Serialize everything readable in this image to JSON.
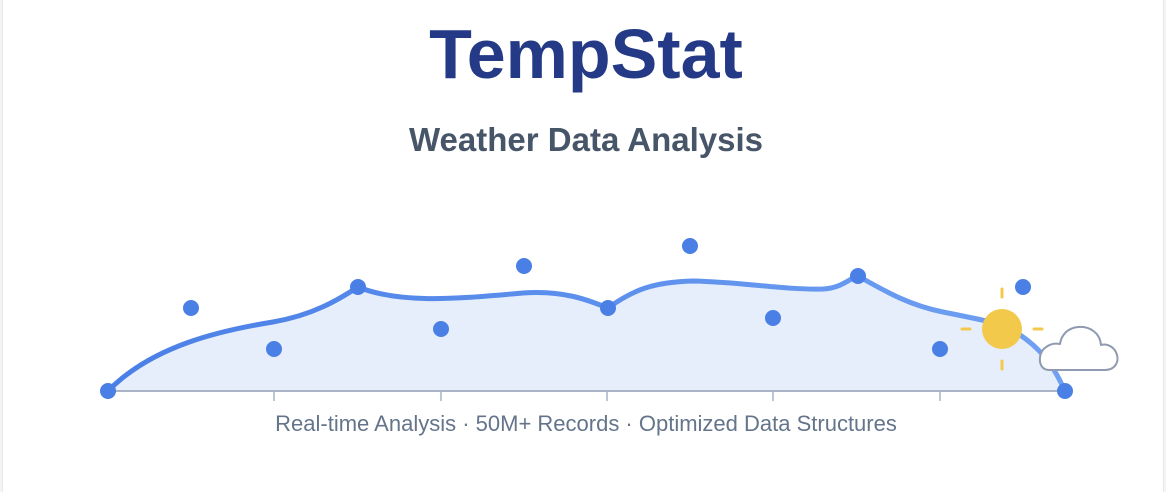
{
  "header": {
    "title": "TempStat",
    "subtitle": "Weather Data Analysis"
  },
  "tagline": "Real-time Analysis · 50M+ Records · Optimized Data Structures",
  "colors": {
    "title": "#243a86",
    "line": "#4f84e8",
    "area": "#e6eefb",
    "points": "#4a7fe6",
    "axis": "#a8b3c6",
    "sun": "#f3c94c",
    "cloud_stroke": "#8f9bb0"
  },
  "icons": [
    "sun-icon",
    "cloud-icon"
  ]
}
